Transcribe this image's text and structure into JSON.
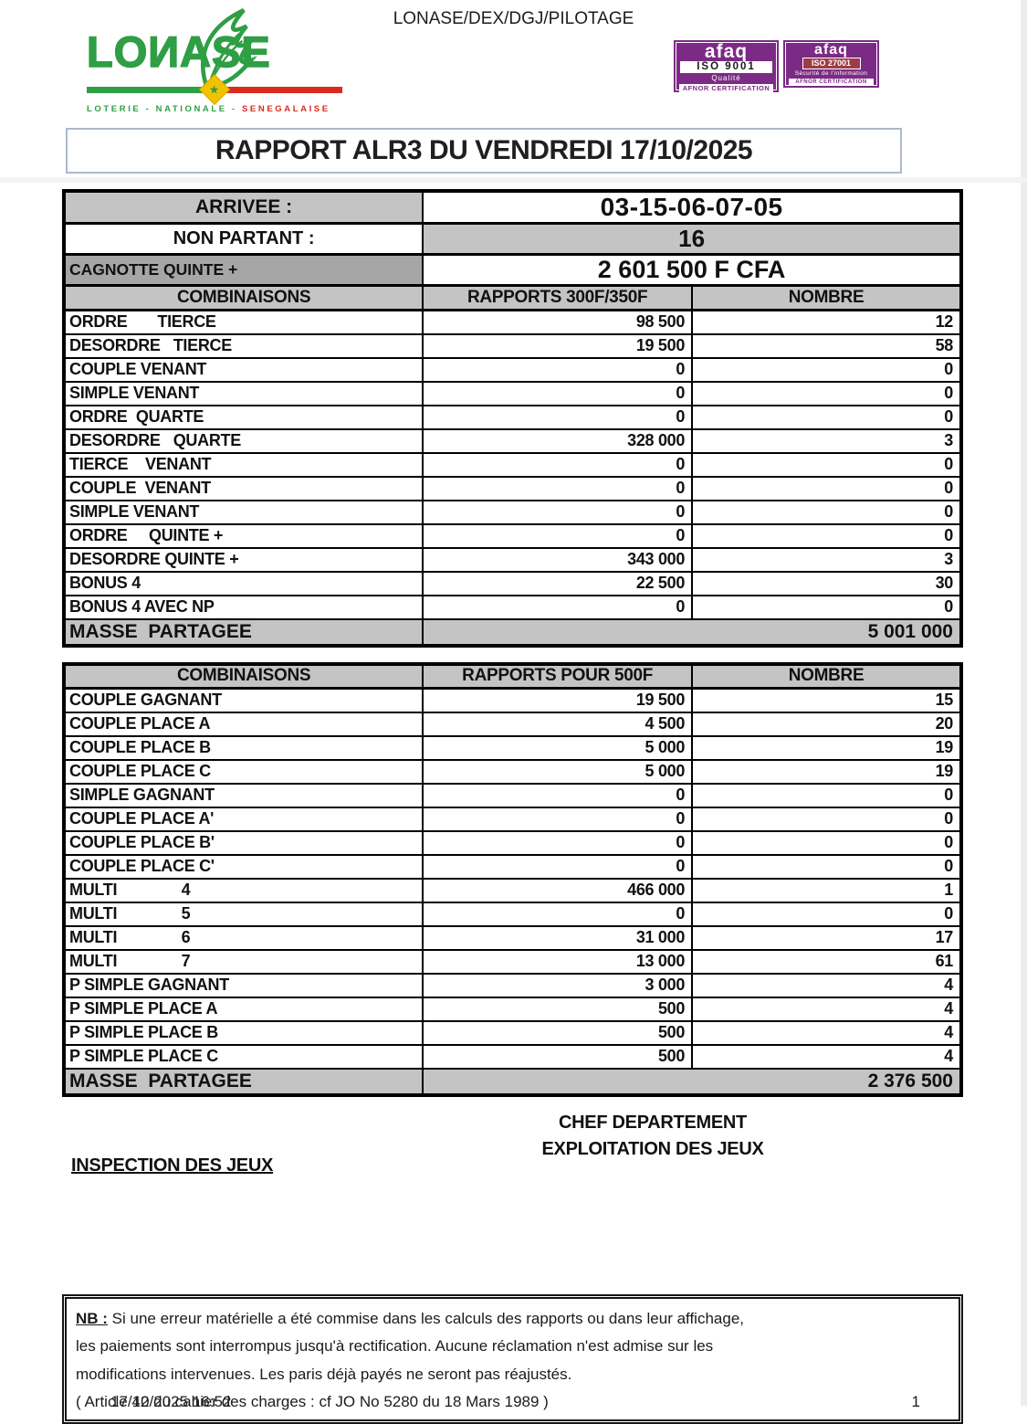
{
  "doc_ref": "LONASE/DEX/DGJ/PILOTAGE",
  "logo": {
    "wordmark": "LOИASE",
    "star": "★",
    "tagline_green": "LOTERIE - NATIONALE -",
    "tagline_red": "SENEGALAISE",
    "colors": {
      "green": "#2f9e45",
      "red": "#d92b1f",
      "yellow": "#f2c200"
    }
  },
  "badges": {
    "color": "#7b2b85",
    "iso9001": {
      "brand": "afaq",
      "iso": "ISO 9001",
      "subtitle": "Qualité",
      "footer": "AFNOR CERTIFICATION"
    },
    "iso27001": {
      "brand": "afaq",
      "iso": "ISO 27001",
      "subtitle": "Sécurité de l'information",
      "footer": "AFNOR CERTIFICATION"
    }
  },
  "title": "RAPPORT ALR3 DU VENDREDI 17/10/2025",
  "summary": {
    "arrivee_label": "ARRIVEE :",
    "arrivee_value": "03-15-06-07-05",
    "non_partant_label": "NON PARTANT  :",
    "non_partant_value": "16",
    "cagnotte_label": "CAGNOTTE QUINTE +",
    "cagnotte_value": "2 601 500 F CFA"
  },
  "table_300": {
    "headers": [
      "COMBINAISONS",
      "RAPPORTS 300F/350F",
      "NOMBRE"
    ],
    "rows": [
      [
        "ORDRE       TIERCE",
        "98 500",
        "12"
      ],
      [
        "DESORDRE   TIERCE",
        "19 500",
        "58"
      ],
      [
        "COUPLE VENANT",
        "0",
        "0"
      ],
      [
        "SIMPLE VENANT",
        "0",
        "0"
      ],
      [
        "ORDRE  QUARTE",
        "0",
        "0"
      ],
      [
        "DESORDRE   QUARTE",
        "328 000",
        "3"
      ],
      [
        "TIERCE    VENANT",
        "0",
        "0"
      ],
      [
        "COUPLE  VENANT",
        "0",
        "0"
      ],
      [
        "SIMPLE VENANT",
        "0",
        "0"
      ],
      [
        "ORDRE     QUINTE +",
        "0",
        "0"
      ],
      [
        "DESORDRE QUINTE +",
        "343 000",
        "3"
      ],
      [
        "BONUS 4",
        "22 500",
        "30"
      ],
      [
        "BONUS 4 AVEC NP",
        "0",
        "0"
      ]
    ],
    "masse_label": "MASSE  PARTAGEE",
    "masse_value": "5 001 000"
  },
  "table_500": {
    "headers": [
      "COMBINAISONS",
      "RAPPORTS POUR 500F",
      "NOMBRE"
    ],
    "rows": [
      [
        "COUPLE GAGNANT",
        "19 500",
        "15"
      ],
      [
        "COUPLE PLACE A",
        "4 500",
        "20"
      ],
      [
        "COUPLE PLACE B",
        "5 000",
        "19"
      ],
      [
        "COUPLE PLACE C",
        "5 000",
        "19"
      ],
      [
        "SIMPLE GAGNANT",
        "0",
        "0"
      ],
      [
        "COUPLE PLACE A'",
        "0",
        "0"
      ],
      [
        "COUPLE PLACE B'",
        "0",
        "0"
      ],
      [
        "COUPLE PLACE C'",
        "0",
        "0"
      ],
      [
        "MULTI               4",
        "466 000",
        "1"
      ],
      [
        "MULTI               5",
        "0",
        "0"
      ],
      [
        "MULTI               6",
        "31 000",
        "17"
      ],
      [
        "MULTI               7",
        "13 000",
        "61"
      ],
      [
        "P SIMPLE GAGNANT",
        "3 000",
        "4"
      ],
      [
        "P SIMPLE PLACE A",
        "500",
        "4"
      ],
      [
        "P SIMPLE PLACE B",
        "500",
        "4"
      ],
      [
        "P SIMPLE PLACE C",
        "500",
        "4"
      ]
    ],
    "masse_label": "MASSE  PARTAGEE",
    "masse_value": "2 376 500"
  },
  "signatures": {
    "chef_line1": "CHEF DEPARTEMENT",
    "chef_line2": "EXPLOITATION DES JEUX",
    "inspection": "INSPECTION DES JEUX"
  },
  "footer_note": {
    "nb_label": "NB :",
    "line1": " Si une erreur matérielle a été commise dans les calculs des rapports ou dans leur affichage,",
    "line2": "les paiements sont interrompus jusqu'à rectification. Aucune réclamation n'est admise sur les",
    "line3": "modifications intervenues. Les paris déjà payés ne seront pas réajustés.",
    "line4": "( Article 42 du cahier des charges : cf JO No 5280 du 18 Mars 1989 )",
    "timestamp_overlay": "17/10/2025 16:52",
    "page_number": "1"
  }
}
